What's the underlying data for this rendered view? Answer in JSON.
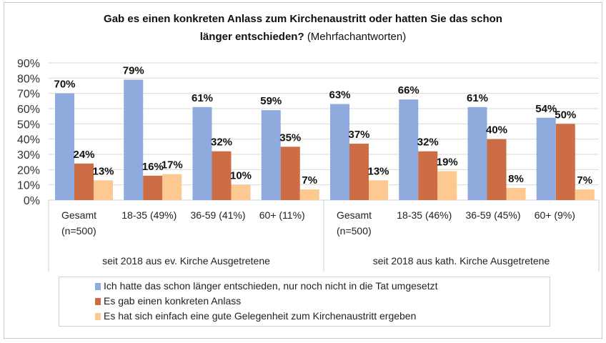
{
  "chart_data": {
    "type": "bar",
    "title_bold": "Gab es einen konkreten Anlass zum Kirchenaustritt oder hatten Sie das schon länger entschieden?",
    "title_note": "(Mehrfachantworten)",
    "title_line1": "Gab es einen konkreten Anlass zum Kirchenaustritt oder hatten Sie das schon",
    "title_line2_bold": "länger entschieden?",
    "xlabel": "",
    "ylabel": "",
    "ylim": [
      0,
      90
    ],
    "yticks": [
      "0%",
      "10%",
      "20%",
      "30%",
      "40%",
      "50%",
      "60%",
      "70%",
      "80%",
      "90%"
    ],
    "grid": true,
    "legend_position": "bottom",
    "groups": [
      {
        "label": "seit 2018 aus ev. Kirche Ausgetretene",
        "categories": [
          [
            "Gesamt",
            "(n=500)"
          ],
          [
            "18-35 (49%)"
          ],
          [
            "36-59 (41%)"
          ],
          [
            "60+ (11%)"
          ]
        ]
      },
      {
        "label": "seit 2018 aus kath. Kirche Ausgetretene",
        "categories": [
          [
            "Gesamt",
            "(n=500)"
          ],
          [
            "18-35 (46%)"
          ],
          [
            "36-59 (45%)"
          ],
          [
            "60+ (9%)"
          ]
        ]
      }
    ],
    "categories": [
      "Gesamt (n=500) ev.",
      "18-35 (49%)",
      "36-59 (41%)",
      "60+ (11%)",
      "Gesamt (n=500) kath.",
      "18-35 (46%)",
      "36-59 (45%)",
      "60+ (9%)"
    ],
    "series": [
      {
        "name": "Ich hatte das schon länger entschieden, nur noch nicht in die Tat umgesetzt",
        "color": "#8faadc",
        "values": [
          70,
          79,
          61,
          59,
          63,
          66,
          61,
          54
        ]
      },
      {
        "name": "Es gab einen konkreten Anlass",
        "color": "#cc6d45",
        "values": [
          24,
          16,
          32,
          35,
          37,
          32,
          40,
          50
        ]
      },
      {
        "name": "Es hat sich einfach eine gute Gelegenheit zum Kirchenaustritt ergeben",
        "color": "#fdc990",
        "values": [
          13,
          17,
          10,
          7,
          13,
          19,
          8,
          7
        ]
      }
    ],
    "data_label_suffix": "%"
  }
}
